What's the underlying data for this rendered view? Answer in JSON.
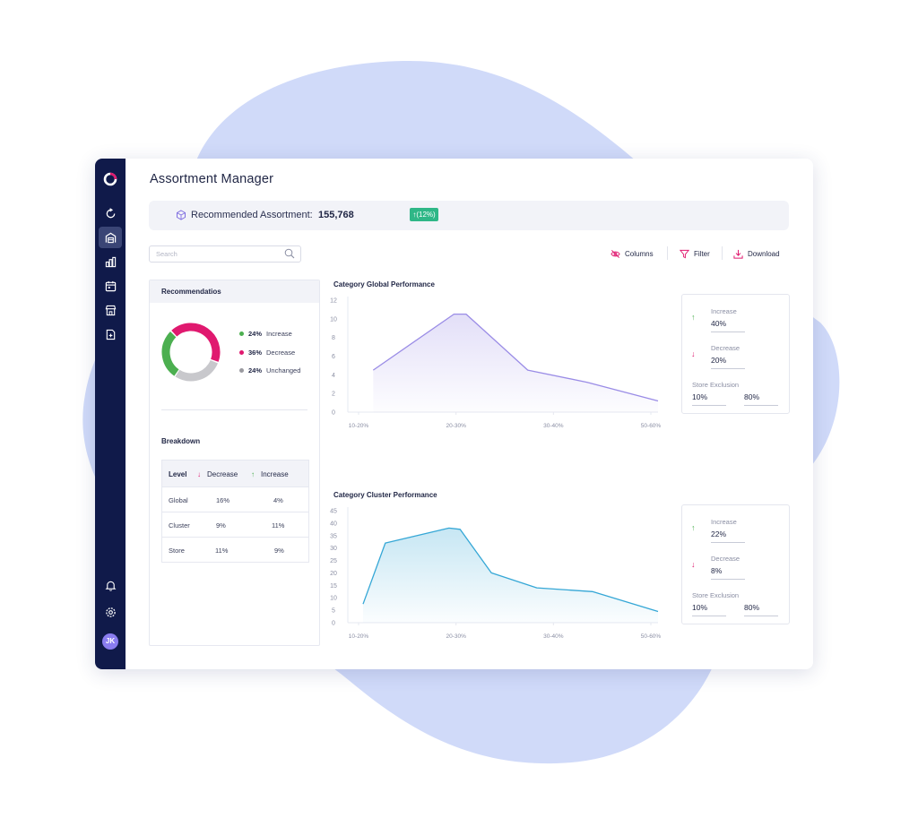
{
  "colors": {
    "brand": "#101a4a",
    "accent": "#e0196f",
    "positive": "#2fb787",
    "increase": "#4caf50",
    "unchanged": "#c8c8cc",
    "chart1": "#9a8ce6",
    "chart2": "#35a7d6"
  },
  "app": {
    "title": "Assortment Manager"
  },
  "sidebar": {
    "avatar_initials": "JK",
    "icons": [
      "refresh-icon",
      "warehouse-icon",
      "bar-chart-icon",
      "calendar-icon",
      "store-icon",
      "document-add-icon",
      "bell-icon",
      "gear-icon"
    ]
  },
  "summary": {
    "label": "Recommended Assortment:",
    "value": "155,768",
    "badge": "(12%)"
  },
  "search": {
    "placeholder": "Search"
  },
  "toolbar": {
    "columns": "Columns",
    "filter": "Filter",
    "download": "Download"
  },
  "recommendations": {
    "title": "Recommendatios",
    "legend": [
      {
        "pct": "24%",
        "label": "Increase",
        "color": "#4caf50"
      },
      {
        "pct": "36%",
        "label": "Decrease",
        "color": "#e0196f"
      },
      {
        "pct": "24%",
        "label": "Unchanged",
        "color": "#9a9aa0"
      }
    ],
    "donut": [
      {
        "value": 24,
        "color": "#4caf50"
      },
      {
        "value": 36,
        "color": "#e0196f"
      },
      {
        "value": 24,
        "color": "#c8c8cc"
      }
    ]
  },
  "breakdown": {
    "title": "Breakdown",
    "headers": {
      "level": "Level",
      "decrease": "Decrease",
      "increase": "Increase"
    },
    "rows": [
      {
        "level": "Global",
        "decrease": "16%",
        "increase": "4%"
      },
      {
        "level": "Cluster",
        "decrease": "9%",
        "increase": "11%"
      },
      {
        "level": "Store",
        "decrease": "11%",
        "increase": "9%"
      }
    ]
  },
  "chart_data": [
    {
      "type": "area",
      "title": "Category Global Performance",
      "x_ticks": [
        "10-20%",
        "20-30%",
        "30-40%",
        "50-60%"
      ],
      "y_ticks": [
        "0",
        "2",
        "4",
        "6",
        "8",
        "10",
        "12"
      ],
      "ylim": [
        0,
        12
      ],
      "xlim": [
        0,
        3
      ],
      "points": [
        {
          "x": 0.18,
          "y": 4.5
        },
        {
          "x": 0.98,
          "y": 10.5
        },
        {
          "x": 1.1,
          "y": 10.5
        },
        {
          "x": 1.71,
          "y": 4.5
        },
        {
          "x": 2.3,
          "y": 3.2
        },
        {
          "x": 3.0,
          "y": 1.2
        }
      ],
      "color": "#9a8ce6"
    },
    {
      "type": "area",
      "title": "Category Cluster Performance",
      "x_ticks": [
        "10-20%",
        "20-30%",
        "30-40%",
        "50-60%"
      ],
      "y_ticks": [
        "0",
        "5",
        "10",
        "15",
        "20",
        "25",
        "30",
        "35",
        "40",
        "45"
      ],
      "ylim": [
        0,
        45
      ],
      "xlim": [
        0,
        3
      ],
      "points": [
        {
          "x": 0.08,
          "y": 7.5
        },
        {
          "x": 0.3,
          "y": 32
        },
        {
          "x": 0.93,
          "y": 38
        },
        {
          "x": 1.04,
          "y": 37.5
        },
        {
          "x": 1.35,
          "y": 20
        },
        {
          "x": 1.8,
          "y": 14
        },
        {
          "x": 2.35,
          "y": 12.5
        },
        {
          "x": 3.0,
          "y": 4.5
        }
      ],
      "color": "#35a7d6"
    }
  ],
  "cards": [
    {
      "increase_label": "Increase",
      "increase_value": "40%",
      "decrease_label": "Decrease",
      "decrease_value": "20%",
      "exclusion_label": "Store Exclusion",
      "exclusion_min": "10%",
      "exclusion_max": "80%"
    },
    {
      "increase_label": "Increase",
      "increase_value": "22%",
      "decrease_label": "Decrease",
      "decrease_value": "8%",
      "exclusion_label": "Store Exclusion",
      "exclusion_min": "10%",
      "exclusion_max": "80%"
    }
  ]
}
